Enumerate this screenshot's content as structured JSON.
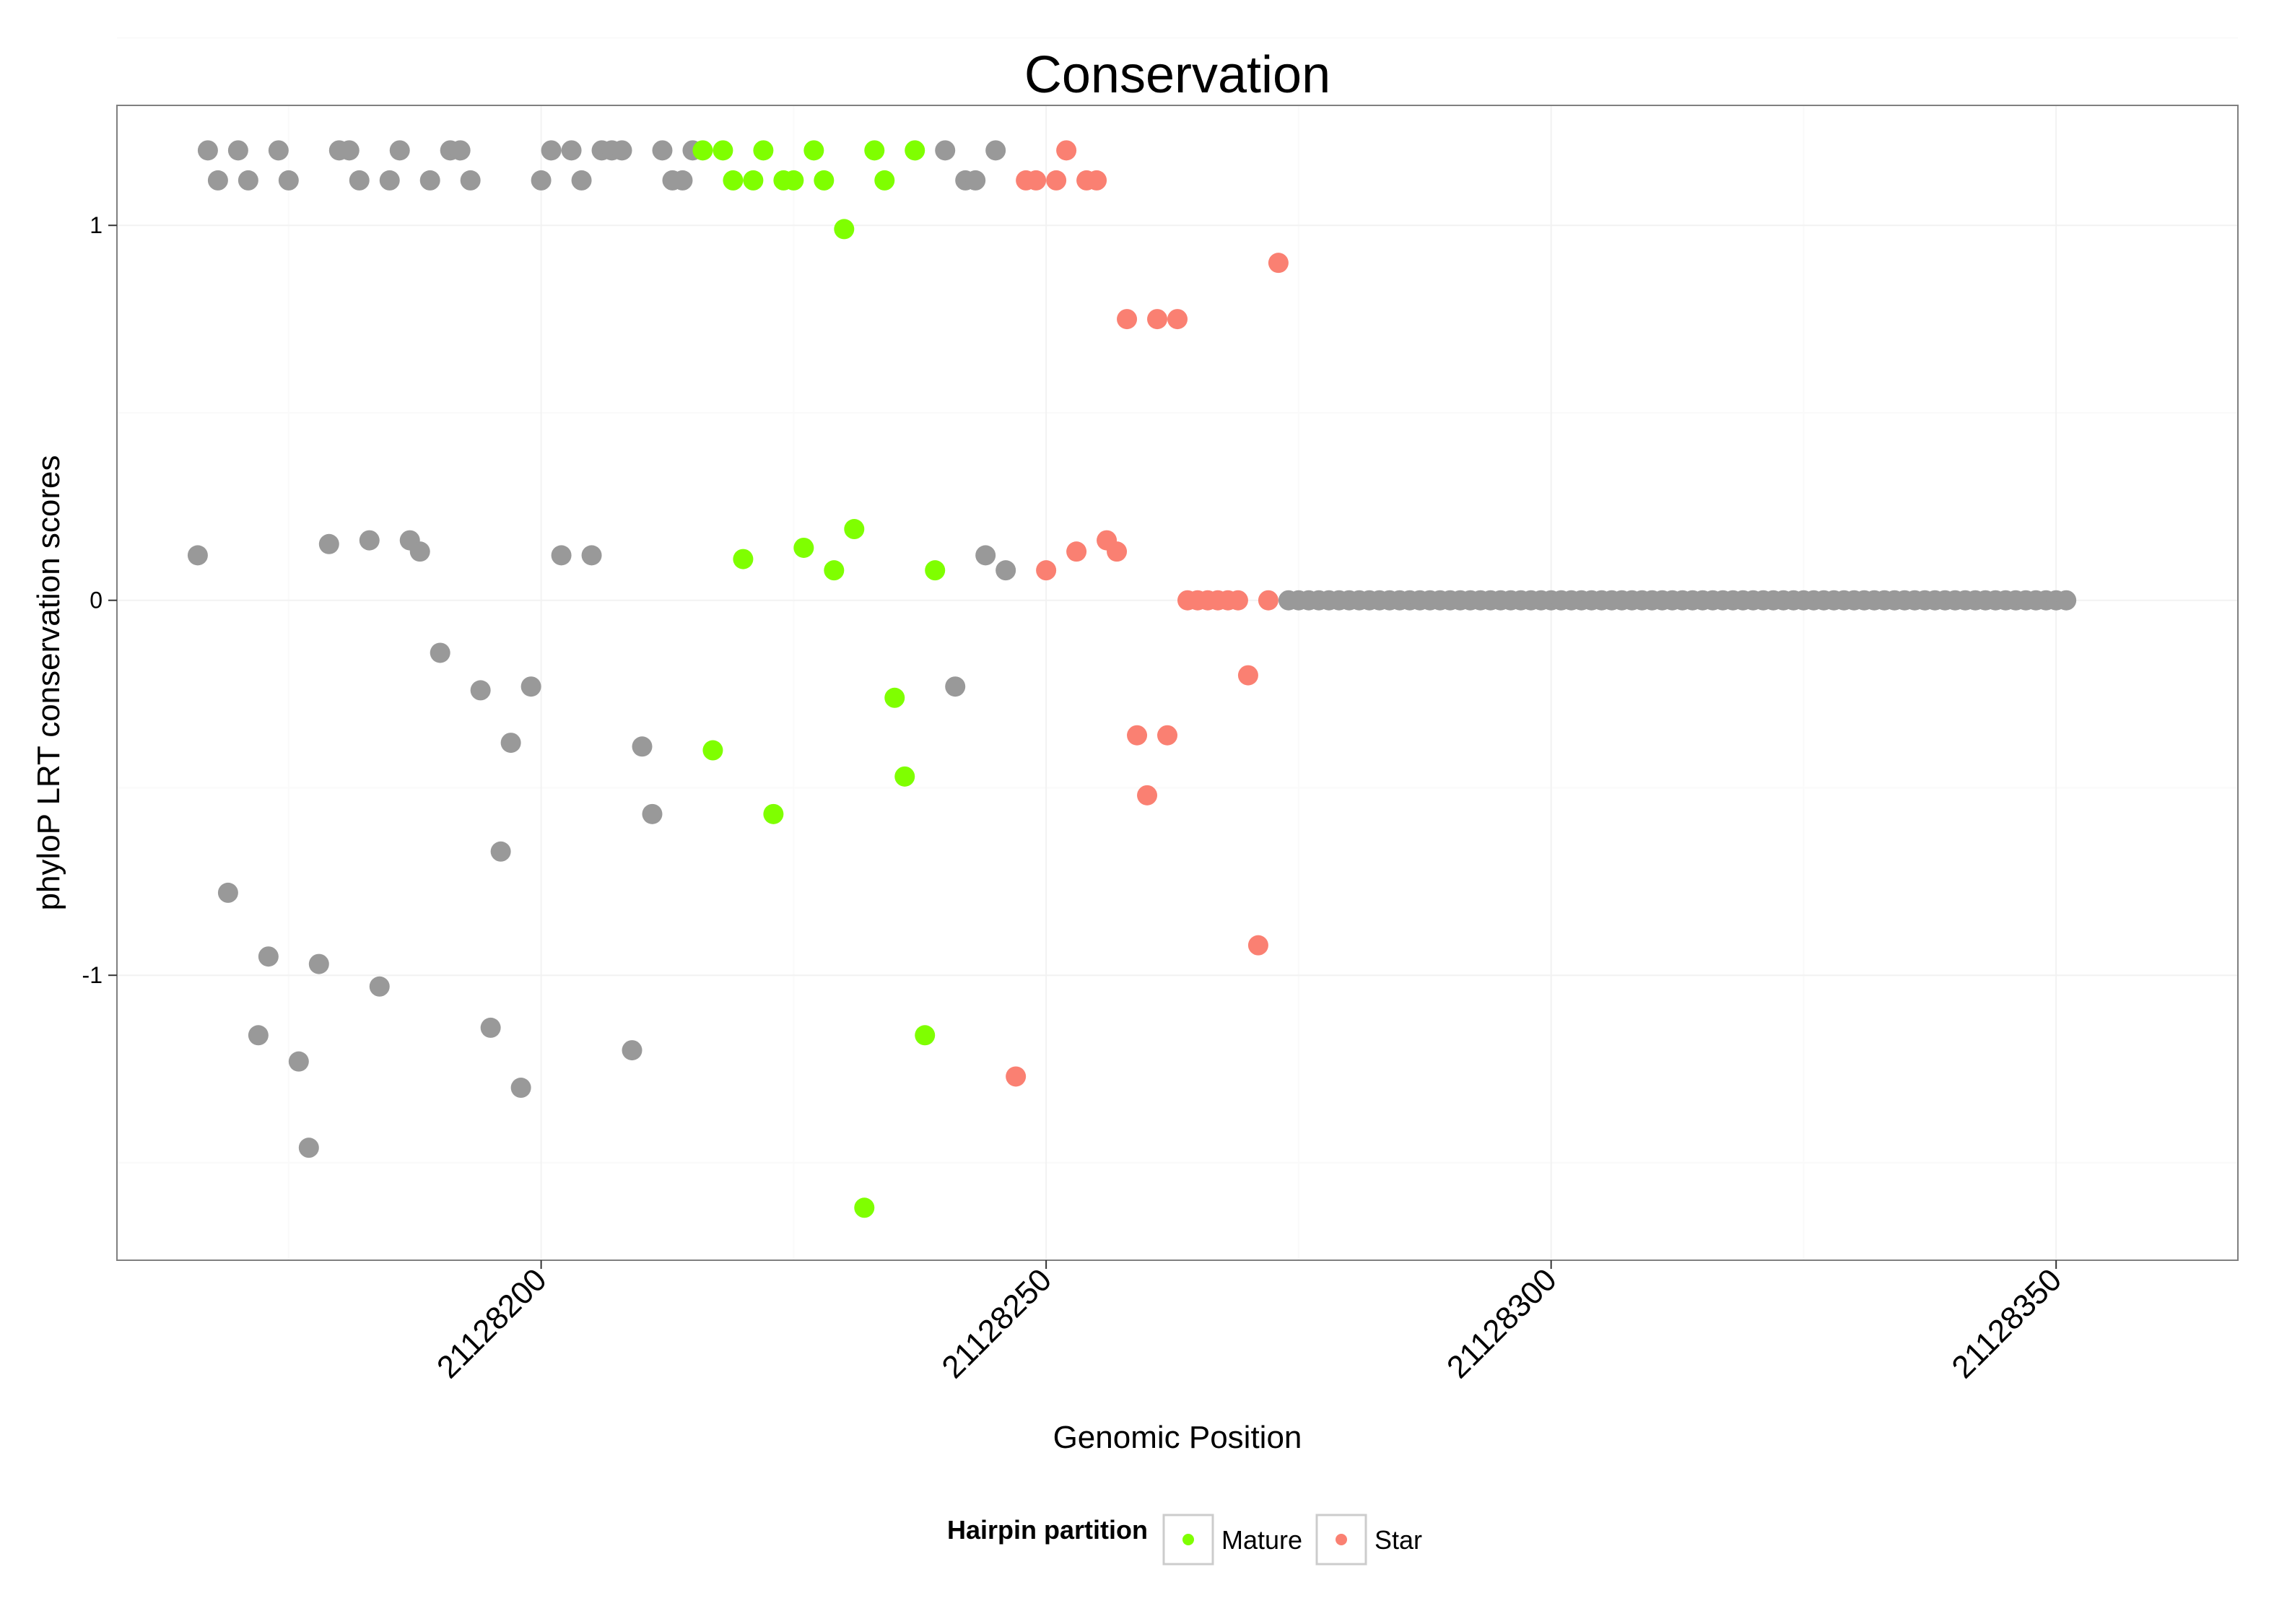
{
  "chart_data": {
    "type": "scatter",
    "title": "Conservation",
    "xlabel": "Genomic Position",
    "ylabel": "phyloP LRT conservation scores",
    "xlim": [
      21128158,
      21128368
    ],
    "ylim": [
      -1.76,
      1.32
    ],
    "x_ticks": [
      21128200,
      21128250,
      21128300,
      21128350
    ],
    "x_tick_labels": [
      "21128200",
      "21128250",
      "21128300",
      "21128350"
    ],
    "y_ticks": [
      -1,
      0,
      1
    ],
    "y_tick_labels": [
      "-1",
      "0",
      "1"
    ],
    "grid": true,
    "legend": {
      "title": "Hairpin partition",
      "position": "bottom",
      "entries": [
        {
          "label": "Mature",
          "color": "#7fff00"
        },
        {
          "label": "Star",
          "color": "#fa8072"
        }
      ]
    },
    "colors": {
      "none": "#999999",
      "Mature": "#7fff00",
      "Star": "#fa8072"
    },
    "series": [
      {
        "name": "none",
        "points": [
          [
            21128166,
            0.12
          ],
          [
            21128167,
            1.2
          ],
          [
            21128168,
            1.12
          ],
          [
            21128169,
            -0.78
          ],
          [
            21128170,
            1.2
          ],
          [
            21128171,
            1.12
          ],
          [
            21128172,
            -1.16
          ],
          [
            21128173,
            -0.95
          ],
          [
            21128174,
            1.2
          ],
          [
            21128175,
            1.12
          ],
          [
            21128176,
            -1.23
          ],
          [
            21128177,
            -1.46
          ],
          [
            21128178,
            -0.97
          ],
          [
            21128179,
            0.15
          ],
          [
            21128180,
            1.2
          ],
          [
            21128181,
            1.2
          ],
          [
            21128182,
            1.12
          ],
          [
            21128183,
            0.16
          ],
          [
            21128184,
            -1.03
          ],
          [
            21128185,
            1.12
          ],
          [
            21128186,
            1.2
          ],
          [
            21128187,
            0.16
          ],
          [
            21128188,
            0.13
          ],
          [
            21128189,
            1.12
          ],
          [
            21128190,
            -0.14
          ],
          [
            21128191,
            1.2
          ],
          [
            21128192,
            1.2
          ],
          [
            21128193,
            1.12
          ],
          [
            21128194,
            -0.24
          ],
          [
            21128195,
            -1.14
          ],
          [
            21128196,
            -0.67
          ],
          [
            21128197,
            -0.38
          ],
          [
            21128198,
            -1.3
          ],
          [
            21128199,
            -0.23
          ],
          [
            21128200,
            1.12
          ],
          [
            21128201,
            1.2
          ],
          [
            21128202,
            0.12
          ],
          [
            21128203,
            1.2
          ],
          [
            21128204,
            1.12
          ],
          [
            21128205,
            0.12
          ],
          [
            21128206,
            1.2
          ],
          [
            21128207,
            1.2
          ],
          [
            21128208,
            1.2
          ],
          [
            21128209,
            -1.2
          ],
          [
            21128210,
            -0.39
          ],
          [
            21128211,
            -0.57
          ],
          [
            21128212,
            1.2
          ],
          [
            21128213,
            1.12
          ],
          [
            21128214,
            1.12
          ],
          [
            21128215,
            1.2
          ],
          [
            21128240,
            1.2
          ],
          [
            21128241,
            -0.23
          ],
          [
            21128242,
            1.12
          ],
          [
            21128243,
            1.12
          ],
          [
            21128244,
            0.12
          ],
          [
            21128245,
            1.2
          ],
          [
            21128246,
            0.08
          ],
          [
            21128274,
            0
          ],
          [
            21128275,
            0
          ],
          [
            21128276,
            0
          ],
          [
            21128277,
            0
          ],
          [
            21128278,
            0
          ],
          [
            21128279,
            0
          ],
          [
            21128280,
            0
          ],
          [
            21128281,
            0
          ],
          [
            21128282,
            0
          ],
          [
            21128283,
            0
          ],
          [
            21128284,
            0
          ],
          [
            21128285,
            0
          ],
          [
            21128286,
            0
          ],
          [
            21128287,
            0
          ],
          [
            21128288,
            0
          ],
          [
            21128289,
            0
          ],
          [
            21128290,
            0
          ],
          [
            21128291,
            0
          ],
          [
            21128292,
            0
          ],
          [
            21128293,
            0
          ],
          [
            21128294,
            0
          ],
          [
            21128295,
            0
          ],
          [
            21128296,
            0
          ],
          [
            21128297,
            0
          ],
          [
            21128298,
            0
          ],
          [
            21128299,
            0
          ],
          [
            21128300,
            0
          ],
          [
            21128301,
            0
          ],
          [
            21128302,
            0
          ],
          [
            21128303,
            0
          ],
          [
            21128304,
            0
          ],
          [
            21128305,
            0
          ],
          [
            21128306,
            0
          ],
          [
            21128307,
            0
          ],
          [
            21128308,
            0
          ],
          [
            21128309,
            0
          ],
          [
            21128310,
            0
          ],
          [
            21128311,
            0
          ],
          [
            21128312,
            0
          ],
          [
            21128313,
            0
          ],
          [
            21128314,
            0
          ],
          [
            21128315,
            0
          ],
          [
            21128316,
            0
          ],
          [
            21128317,
            0
          ],
          [
            21128318,
            0
          ],
          [
            21128319,
            0
          ],
          [
            21128320,
            0
          ],
          [
            21128321,
            0
          ],
          [
            21128322,
            0
          ],
          [
            21128323,
            0
          ],
          [
            21128324,
            0
          ],
          [
            21128325,
            0
          ],
          [
            21128326,
            0
          ],
          [
            21128327,
            0
          ],
          [
            21128328,
            0
          ],
          [
            21128329,
            0
          ],
          [
            21128330,
            0
          ],
          [
            21128331,
            0
          ],
          [
            21128332,
            0
          ],
          [
            21128333,
            0
          ],
          [
            21128334,
            0
          ],
          [
            21128335,
            0
          ],
          [
            21128336,
            0
          ],
          [
            21128337,
            0
          ],
          [
            21128338,
            0
          ],
          [
            21128339,
            0
          ],
          [
            21128340,
            0
          ],
          [
            21128341,
            0
          ],
          [
            21128342,
            0
          ],
          [
            21128343,
            0
          ],
          [
            21128344,
            0
          ],
          [
            21128345,
            0
          ],
          [
            21128346,
            0
          ],
          [
            21128347,
            0
          ],
          [
            21128348,
            0
          ],
          [
            21128349,
            0
          ],
          [
            21128350,
            0
          ],
          [
            21128351,
            0
          ]
        ]
      },
      {
        "name": "Mature",
        "points": [
          [
            21128216,
            1.2
          ],
          [
            21128217,
            -0.4
          ],
          [
            21128218,
            1.2
          ],
          [
            21128219,
            1.12
          ],
          [
            21128220,
            0.11
          ],
          [
            21128221,
            1.12
          ],
          [
            21128222,
            1.2
          ],
          [
            21128223,
            -0.57
          ],
          [
            21128224,
            1.12
          ],
          [
            21128225,
            1.12
          ],
          [
            21128226,
            0.14
          ],
          [
            21128227,
            1.2
          ],
          [
            21128228,
            1.12
          ],
          [
            21128229,
            0.08
          ],
          [
            21128230,
            0.99
          ],
          [
            21128231,
            0.19
          ],
          [
            21128232,
            -1.62
          ],
          [
            21128233,
            1.2
          ],
          [
            21128234,
            1.12
          ],
          [
            21128235,
            -0.26
          ],
          [
            21128236,
            -0.47
          ],
          [
            21128237,
            1.2
          ],
          [
            21128238,
            -1.16
          ],
          [
            21128239,
            0.08
          ]
        ]
      },
      {
        "name": "Star",
        "points": [
          [
            21128247,
            -1.27
          ],
          [
            21128248,
            1.12
          ],
          [
            21128249,
            1.12
          ],
          [
            21128250,
            0.08
          ],
          [
            21128251,
            1.12
          ],
          [
            21128252,
            1.2
          ],
          [
            21128253,
            0.13
          ],
          [
            21128254,
            1.12
          ],
          [
            21128255,
            1.12
          ],
          [
            21128256,
            0.16
          ],
          [
            21128257,
            0.13
          ],
          [
            21128258,
            0.75
          ],
          [
            21128259,
            -0.36
          ],
          [
            21128260,
            -0.52
          ],
          [
            21128261,
            0.75
          ],
          [
            21128262,
            -0.36
          ],
          [
            21128263,
            0.75
          ],
          [
            21128264,
            0
          ],
          [
            21128265,
            0
          ],
          [
            21128266,
            0
          ],
          [
            21128267,
            0
          ],
          [
            21128268,
            0
          ],
          [
            21128269,
            0
          ],
          [
            21128270,
            -0.2
          ],
          [
            21128271,
            -0.92
          ],
          [
            21128272,
            0
          ],
          [
            21128273,
            0.9
          ]
        ]
      }
    ]
  }
}
